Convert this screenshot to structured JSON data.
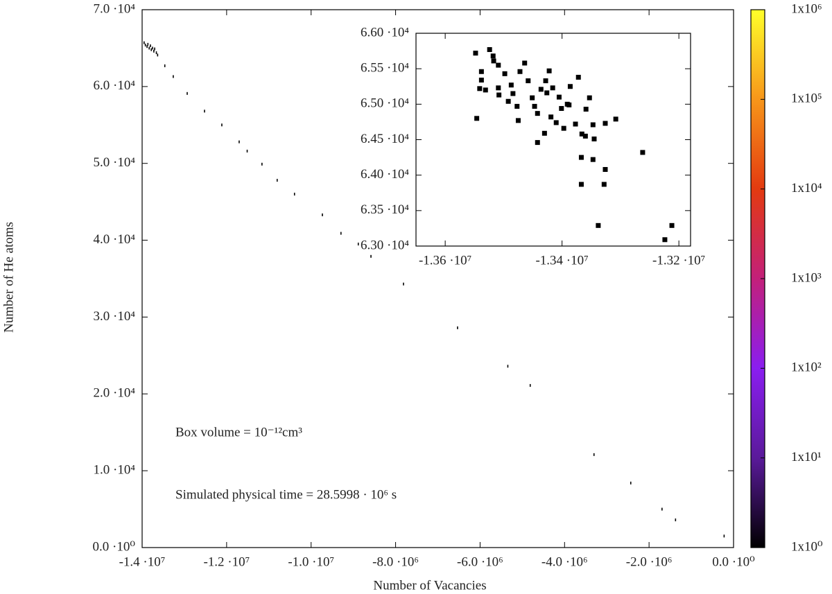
{
  "chart_data": [
    {
      "type": "scatter",
      "x_label": "Number of Vacancies",
      "y_label": "Number of He atoms",
      "annotations": [
        "Box volume = 10⁻¹²cm³",
        "Simulated physical time = 28.5998 · 10⁶ s"
      ],
      "marker": "dash",
      "color": "#000000",
      "xlim": [
        -14000000,
        0
      ],
      "ylim": [
        0,
        70000
      ],
      "xticks": [
        {
          "value": -14000000,
          "label": "-1.4 ·10⁷"
        },
        {
          "value": -12000000,
          "label": "-1.2 ·10⁷"
        },
        {
          "value": -10000000,
          "label": "-1.0 ·10⁷"
        },
        {
          "value": -8000000,
          "label": "-8.0 ·10⁶"
        },
        {
          "value": -6000000,
          "label": "-6.0 ·10⁶"
        },
        {
          "value": -4000000,
          "label": "-4.0 ·10⁶"
        },
        {
          "value": -2000000,
          "label": "-2.0 ·10⁶"
        },
        {
          "value": 0,
          "label": "0.0 ·10⁰"
        }
      ],
      "yticks": [
        {
          "value": 0,
          "label": "0.0 ·10⁰"
        },
        {
          "value": 10000,
          "label": "1.0 ·10⁴"
        },
        {
          "value": 20000,
          "label": "2.0 ·10⁴"
        },
        {
          "value": 30000,
          "label": "3.0 ·10⁴"
        },
        {
          "value": 40000,
          "label": "4.0 ·10⁴"
        },
        {
          "value": 50000,
          "label": "5.0 ·10⁴"
        },
        {
          "value": 60000,
          "label": "6.0 ·10⁴"
        },
        {
          "value": 70000,
          "label": "7.0 ·10⁴"
        }
      ],
      "x": [
        -13950000,
        -13920000,
        -13880000,
        -13860000,
        -13830000,
        -13800000,
        -13780000,
        -13750000,
        -13720000,
        -13700000,
        -13660000,
        -13630000,
        -13460000,
        -13260000,
        -12930000,
        -12520000,
        -12110000,
        -11700000,
        -11510000,
        -11160000,
        -10800000,
        -10390000,
        -9730000,
        -9290000,
        -8880000,
        -8580000,
        -7810000,
        -6530000,
        -5340000,
        -4810000,
        -3300000,
        -2430000,
        -1690000,
        -1370000,
        -220000
      ],
      "y": [
        65700,
        65400,
        65200,
        65500,
        65000,
        65300,
        64800,
        65000,
        64600,
        64900,
        64400,
        64100,
        62700,
        61300,
        59100,
        56800,
        55000,
        52800,
        51600,
        49900,
        47800,
        46000,
        43300,
        40900,
        39500,
        37900,
        34300,
        28600,
        23600,
        21100,
        12100,
        8400,
        5000,
        3600,
        1500
      ]
    },
    {
      "type": "scatter",
      "marker": "square",
      "color": "#000000",
      "xlim": [
        -13650000,
        -13180000
      ],
      "ylim": [
        63000,
        66000
      ],
      "xticks": [
        {
          "value": -13600000,
          "label": "-1.36 ·10⁷"
        },
        {
          "value": -13400000,
          "label": "-1.34 ·10⁷"
        },
        {
          "value": -13200000,
          "label": "-1.32 ·10⁷"
        }
      ],
      "yticks": [
        {
          "value": 63000,
          "label": "6.30 ·10⁴"
        },
        {
          "value": 63500,
          "label": "6.35 ·10⁴"
        },
        {
          "value": 64000,
          "label": "6.40 ·10⁴"
        },
        {
          "value": 64500,
          "label": "6.45 ·10⁴"
        },
        {
          "value": 65000,
          "label": "6.50 ·10⁴"
        },
        {
          "value": 65500,
          "label": "6.55 ·10⁴"
        },
        {
          "value": 66000,
          "label": "6.60 ·10⁴"
        }
      ],
      "x": [
        -13548000,
        -13518000,
        -13517000,
        -13524000,
        -13509000,
        -13498000,
        -13509000,
        -13538000,
        -13538000,
        -13541000,
        -13531000,
        -13546000,
        -13508000,
        -13487000,
        -13484000,
        -13472000,
        -13464000,
        -13458000,
        -13451000,
        -13447000,
        -13436000,
        -13428000,
        -13422000,
        -13416000,
        -13405000,
        -13391000,
        -13477000,
        -13492000,
        -13475000,
        -13426000,
        -13442000,
        -13430000,
        -13419000,
        -13386000,
        -13372000,
        -13388000,
        -13353000,
        -13359000,
        -13366000,
        -13401000,
        -13410000,
        -13377000,
        -13360000,
        -13347000,
        -13326000,
        -13308000,
        -13345000,
        -13397000,
        -13442000,
        -13367000,
        -13347000,
        -13326000,
        -13367000,
        -13328000,
        -13262000,
        -13338000,
        -13212000,
        -13224000
      ],
      "y": [
        65720,
        65680,
        65610,
        65770,
        65550,
        65430,
        65230,
        65460,
        65340,
        65220,
        65200,
        64800,
        65130,
        65270,
        65150,
        65460,
        65580,
        65330,
        65090,
        64970,
        65210,
        65330,
        65470,
        65230,
        65100,
        65000,
        64970,
        65040,
        64770,
        65160,
        64870,
        64590,
        64820,
        65250,
        65380,
        64990,
        65090,
        64930,
        64580,
        64940,
        64740,
        64720,
        64550,
        64710,
        64730,
        64790,
        64510,
        64660,
        64460,
        64250,
        64220,
        64080,
        63870,
        63870,
        64320,
        63290,
        63290,
        63090
      ]
    },
    {
      "type": "colorbar",
      "log_scale": true,
      "colors": [
        "#000000",
        "#5a1a9a",
        "#8a1ef0",
        "#c3207a",
        "#e33a10",
        "#f7961a",
        "#ffff2a"
      ],
      "zlim": [
        1,
        1000000
      ],
      "zticks": [
        {
          "value": 1,
          "label": "1x10⁰"
        },
        {
          "value": 10,
          "label": "1x10¹"
        },
        {
          "value": 100,
          "label": "1x10²"
        },
        {
          "value": 1000,
          "label": "1x10³"
        },
        {
          "value": 10000,
          "label": "1x10⁴"
        },
        {
          "value": 100000,
          "label": "1x10⁵"
        },
        {
          "value": 1000000,
          "label": "1x10⁶"
        }
      ]
    }
  ]
}
